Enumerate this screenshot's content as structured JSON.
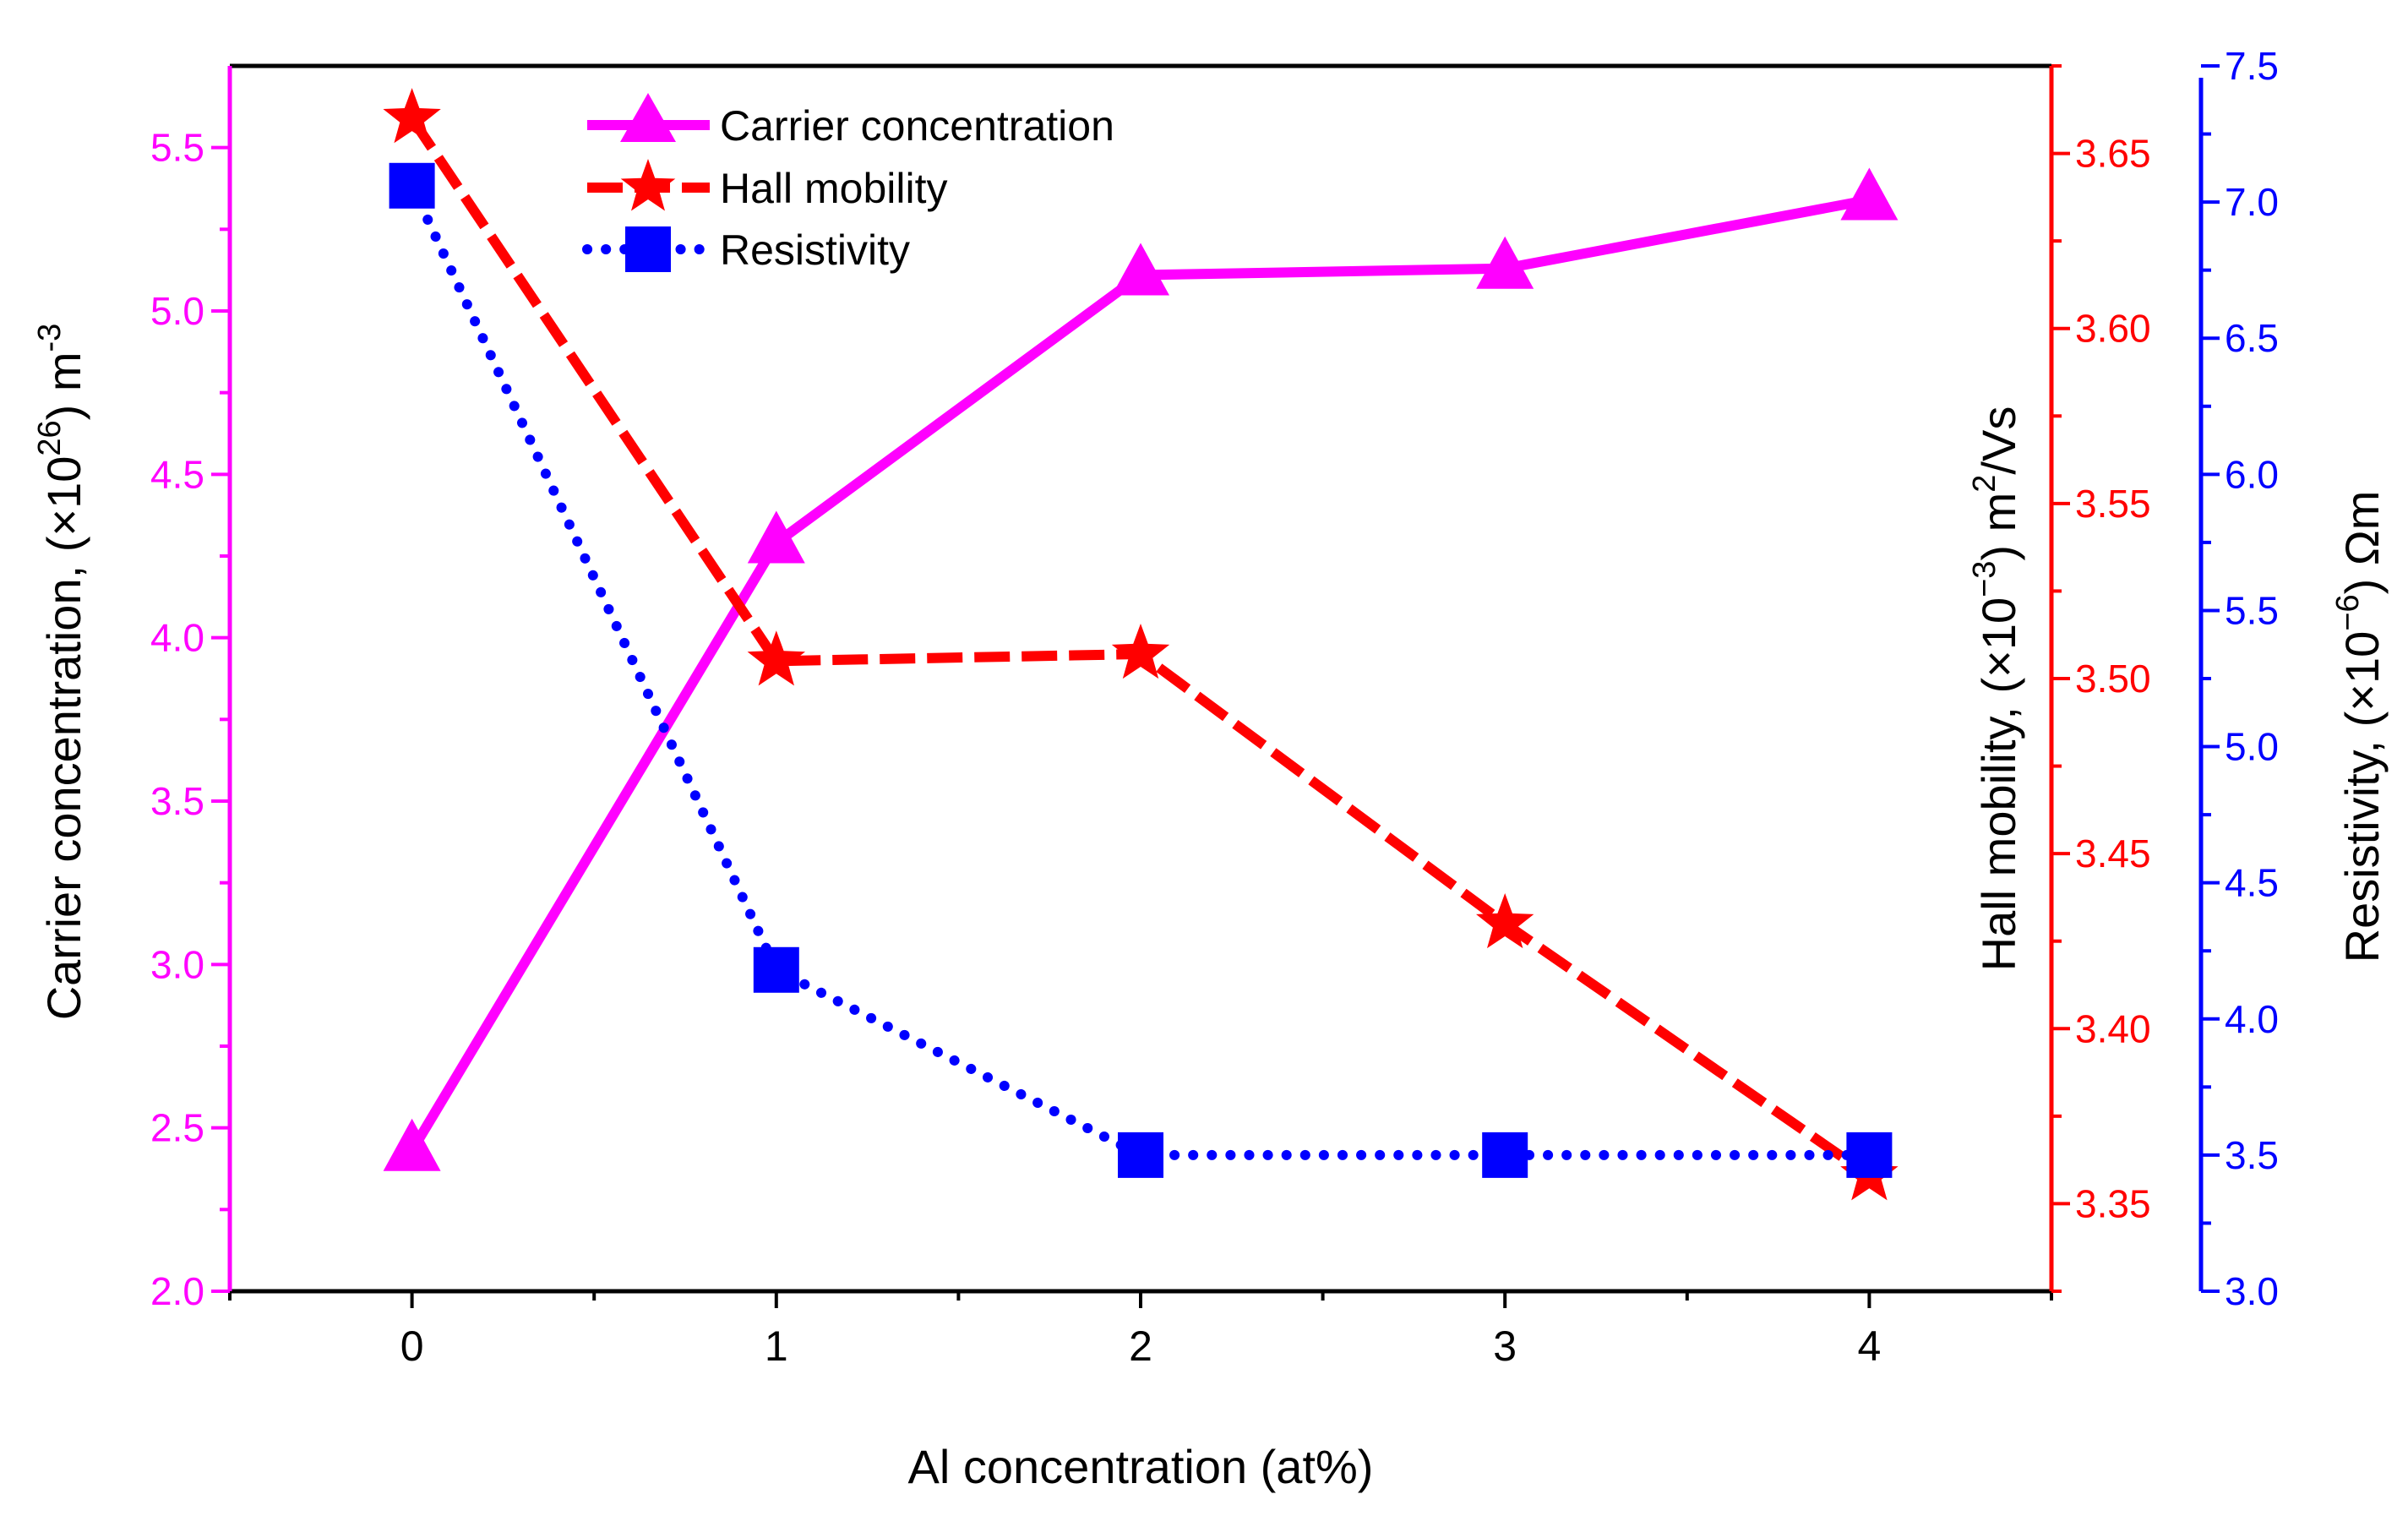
{
  "chart_data": {
    "type": "line",
    "xlabel": "Al concentration (at%)",
    "x": [
      0,
      1,
      2,
      3,
      4
    ],
    "xticks": [
      "0",
      "1",
      "2",
      "3",
      "4"
    ],
    "xlim": [
      -0.5,
      4.5
    ],
    "axes": {
      "left": {
        "label_main": "Carrier concentration, (×10",
        "label_sup": "26",
        "label_tail": ") m",
        "label_sup2": "-3",
        "ylim": [
          2.0,
          5.75
        ],
        "ticks": [
          "2.0",
          "2.5",
          "3.0",
          "3.5",
          "4.0",
          "4.5",
          "5.0",
          "5.5"
        ],
        "tick_values": [
          2.0,
          2.5,
          3.0,
          3.5,
          4.0,
          4.5,
          5.0,
          5.5
        ],
        "color": "#ff00ff"
      },
      "middle": {
        "label_main": "Hall mobility, (×10",
        "label_sup": "−3",
        "label_tail": ") m",
        "label_sup2": "2",
        "label_end": "/Vs",
        "ylim": [
          3.325,
          3.675
        ],
        "ticks": [
          "3.35",
          "3.40",
          "3.45",
          "3.50",
          "3.55",
          "3.60",
          "3.65"
        ],
        "tick_values": [
          3.35,
          3.4,
          3.45,
          3.5,
          3.55,
          3.6,
          3.65
        ],
        "color": "#ff0000"
      },
      "right": {
        "label_main": "Resistivity, (×10",
        "label_sup": "−6",
        "label_tail": ") Ωm",
        "ylim": [
          3.0,
          7.5
        ],
        "ticks": [
          "3.0",
          "3.5",
          "4.0",
          "4.5",
          "5.0",
          "5.5",
          "6.0",
          "6.5",
          "7.0",
          "7.5"
        ],
        "tick_values": [
          3.0,
          3.5,
          4.0,
          4.5,
          5.0,
          5.5,
          6.0,
          6.5,
          7.0,
          7.5
        ],
        "color": "#0000ff"
      }
    },
    "series": [
      {
        "name": "Carrier concentration",
        "axis": "left",
        "values": [
          2.43,
          4.29,
          5.11,
          5.13,
          5.34
        ],
        "color": "#ff00ff",
        "marker": "triangle",
        "line": "solid"
      },
      {
        "name": "Hall mobility",
        "axis": "middle",
        "values": [
          3.66,
          3.505,
          3.507,
          3.43,
          3.358
        ],
        "color": "#ff0000",
        "marker": "star",
        "line": "dashed"
      },
      {
        "name": "Resistivity",
        "axis": "right",
        "values": [
          7.06,
          4.18,
          3.5,
          3.5,
          3.5
        ],
        "color": "#0000ff",
        "marker": "square",
        "line": "dotted"
      }
    ],
    "legend_position": "top-left",
    "grid": false
  }
}
